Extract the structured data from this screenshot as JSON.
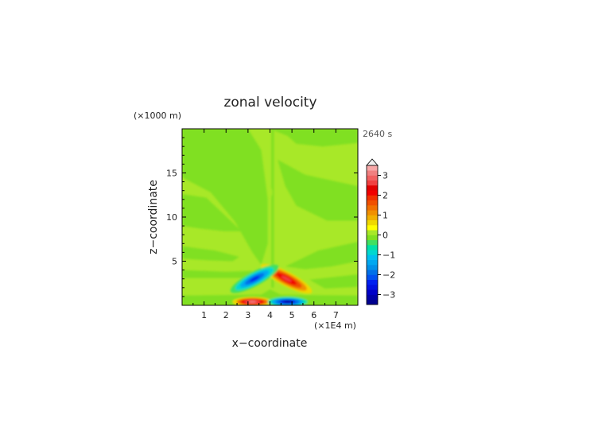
{
  "chart_data": {
    "type": "heatmap",
    "title": "zonal velocity",
    "time_label": "2640 s",
    "xlabel": "x−coordinate",
    "ylabel": "z−coordinate",
    "x_unit": "(×1E4 m)",
    "y_unit": "(×1000 m)",
    "xlim": [
      0,
      8
    ],
    "ylim": [
      0,
      20
    ],
    "x_ticks": [
      "1",
      "2",
      "3",
      "4",
      "5",
      "6",
      "7"
    ],
    "y_ticks": [
      "5",
      "10",
      "15"
    ],
    "colorbar": {
      "ticks": [
        "3",
        "2",
        "1",
        "0",
        "−1",
        "−2",
        "−3"
      ],
      "levels": [
        -3.5,
        -3.25,
        -3.0,
        -2.75,
        -2.5,
        -2.25,
        -2.0,
        -1.75,
        -1.5,
        -1.25,
        -1.0,
        -0.75,
        -0.5,
        -0.25,
        0.0,
        0.25,
        0.5,
        0.75,
        1.0,
        1.25,
        1.5,
        1.75,
        2.0,
        2.25,
        2.5,
        2.75,
        3.0,
        3.25,
        3.5
      ],
      "colors": [
        "#000090",
        "#0000a8",
        "#0000c8",
        "#0010e0",
        "#0020f0",
        "#0050f0",
        "#0070e8",
        "#0090e8",
        "#00a8f0",
        "#00c0f0",
        "#00d8d0",
        "#00e0a8",
        "#40e060",
        "#80e020",
        "#a8e828",
        "#ffff00",
        "#f0d800",
        "#f0b000",
        "#f09000",
        "#f07000",
        "#f05000",
        "#f03000",
        "#f00000",
        "#e00000",
        "#f04040",
        "#f06060",
        "#f08080",
        "#f8a8a8"
      ],
      "extend": "max"
    },
    "features": [
      {
        "x": 4.4,
        "z": 3.3,
        "value": 2.6,
        "description": "positive jet right of center"
      },
      {
        "x": 3.5,
        "z": 3.3,
        "value": -2.6,
        "description": "negative jet left of center"
      },
      {
        "x": 3.2,
        "z": 0.2,
        "value": 3.2,
        "description": "surface positive core"
      },
      {
        "x": 4.7,
        "z": 0.2,
        "value": -3.4,
        "description": "surface negative core"
      }
    ]
  }
}
